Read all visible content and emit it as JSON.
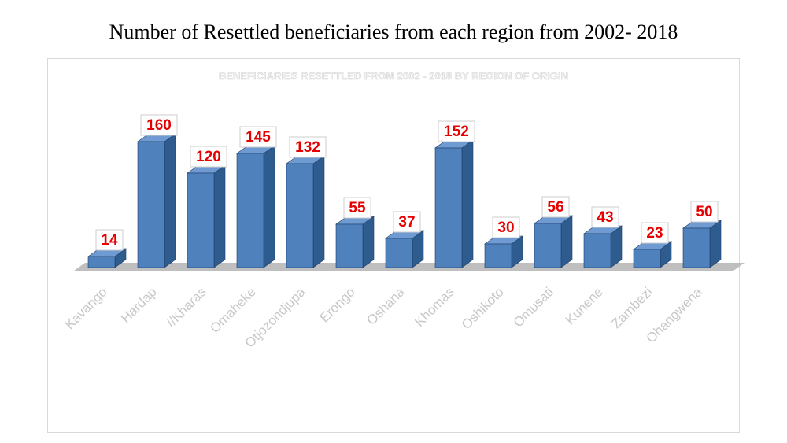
{
  "page_title": "Number of Resettled beneficiaries from each region from 2002- 2018",
  "chart_data": {
    "type": "bar",
    "title": "BENEFICIARIES RESETTLED FROM 2002 - 2018 BY REGION OF ORIGIN",
    "categories": [
      "Kavango",
      "Hardap",
      "//Kharas",
      "Omaheke",
      "Otjozondjupa",
      "Erongo",
      "Oshana",
      "Khomas",
      "Oshikoto",
      "Omusati",
      "Kunene",
      "Zambezi",
      "Ohangwena"
    ],
    "values": [
      14,
      160,
      120,
      145,
      132,
      55,
      37,
      152,
      30,
      56,
      43,
      23,
      50
    ],
    "xlabel": "",
    "ylabel": "",
    "ylim": [
      0,
      175
    ],
    "grid": false,
    "legend": "none",
    "colors": {
      "bar_front": "#4f81bd",
      "bar_side": "#2e5c8f",
      "bar_top": "#6f9bd2",
      "floor": "#bfbfbf",
      "value_label": "#e60000",
      "category_label": "#c8c8c8",
      "title": "#f2f2f2"
    }
  }
}
